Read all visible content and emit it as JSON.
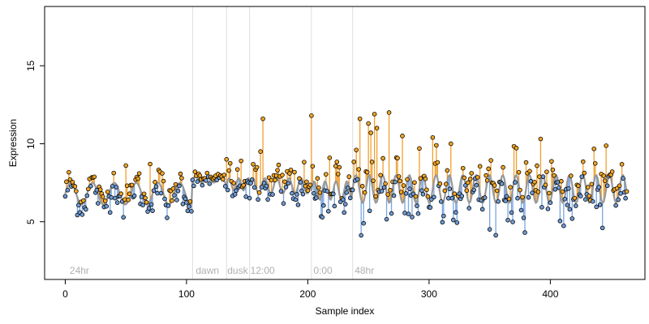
{
  "chart_data": {
    "type": "scatter",
    "title": "",
    "xlabel": "Sample index",
    "ylabel": "Expression",
    "xlim": [
      -17,
      478
    ],
    "ylim": [
      1.3,
      18.8
    ],
    "xticks": [
      0,
      100,
      200,
      300,
      400
    ],
    "yticks": [
      5,
      10,
      15
    ],
    "grid": false,
    "legend": "none",
    "colors": {
      "points_edge": "#000000",
      "above_point_fill": "#f5a623",
      "below_point_fill": "#6f9bd6",
      "above_stem": "#f0a030",
      "below_stem": "#7aa6e0",
      "fitted_line": "#999999",
      "phase_lines": "#dddddd",
      "annotations": "#b0b0b0"
    },
    "phase_boundaries": [
      105,
      133,
      152,
      203,
      237
    ],
    "annotations": [
      {
        "label": "24hr",
        "x": 3
      },
      {
        "label": "dawn",
        "x": 107
      },
      {
        "label": "dusk",
        "x": 133
      },
      {
        "label": "12:00",
        "x": 152
      },
      {
        "label": "0:00",
        "x": 204
      },
      {
        "label": "48hr",
        "x": 238
      }
    ],
    "segments": [
      {
        "x_start": 0,
        "x_end": 104,
        "mean": 6.8,
        "amp": 0.7,
        "noise": 0.55,
        "period": 18
      },
      {
        "x_start": 105,
        "x_end": 132,
        "mean": 7.7,
        "amp": 0.2,
        "noise": 0.25,
        "period": 10
      },
      {
        "x_start": 133,
        "x_end": 151,
        "mean": 7.4,
        "amp": 0.4,
        "noise": 0.6,
        "period": 8
      },
      {
        "x_start": 152,
        "x_end": 202,
        "mean": 7.3,
        "amp": 0.5,
        "noise": 0.7,
        "period": 10
      },
      {
        "x_start": 203,
        "x_end": 236,
        "mean": 7.0,
        "amp": 0.6,
        "noise": 0.9,
        "period": 9
      },
      {
        "x_start": 237,
        "x_end": 463,
        "mean": 7.1,
        "amp": 0.9,
        "noise": 1.0,
        "period": 11
      }
    ],
    "outliers": [
      {
        "x": 50,
        "y": 8.6
      },
      {
        "x": 70,
        "y": 8.7
      },
      {
        "x": 80,
        "y": 8.1
      },
      {
        "x": 133,
        "y": 9.0
      },
      {
        "x": 163,
        "y": 11.6
      },
      {
        "x": 161,
        "y": 9.5
      },
      {
        "x": 203,
        "y": 11.8
      },
      {
        "x": 218,
        "y": 9.1
      },
      {
        "x": 240,
        "y": 9.6
      },
      {
        "x": 243,
        "y": 11.6
      },
      {
        "x": 250,
        "y": 11.3
      },
      {
        "x": 252,
        "y": 10.7
      },
      {
        "x": 255,
        "y": 11.9
      },
      {
        "x": 257,
        "y": 11.0
      },
      {
        "x": 267,
        "y": 12.0
      },
      {
        "x": 278,
        "y": 10.5
      },
      {
        "x": 292,
        "y": 9.7
      },
      {
        "x": 303,
        "y": 10.4
      },
      {
        "x": 306,
        "y": 9.9
      },
      {
        "x": 318,
        "y": 10.0
      },
      {
        "x": 380,
        "y": 8.8
      },
      {
        "x": 397,
        "y": 8.2
      },
      {
        "x": 251,
        "y": 5.7
      },
      {
        "x": 283,
        "y": 5.5
      },
      {
        "x": 286,
        "y": 5.3
      },
      {
        "x": 418,
        "y": 5.2
      },
      {
        "x": 322,
        "y": 5.6
      },
      {
        "x": 344,
        "y": 5.8
      },
      {
        "x": 416,
        "y": 5.8
      }
    ]
  }
}
